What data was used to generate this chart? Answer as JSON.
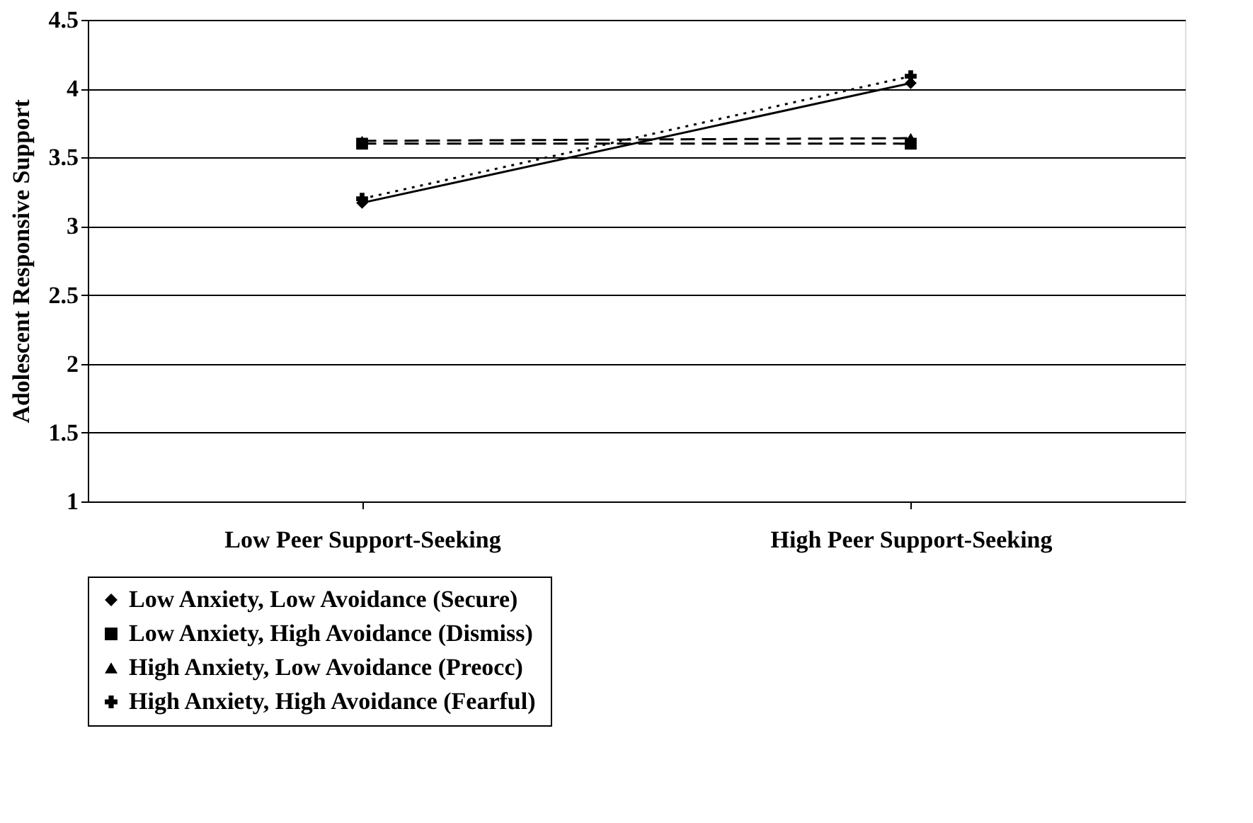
{
  "chart_data": {
    "type": "line",
    "ylabel": "Adolescent Responsive Support",
    "categories": [
      "Low Peer Support-Seeking",
      "High Peer Support-Seeking"
    ],
    "series": [
      {
        "name": "Low Anxiety, Low Avoidance (Secure)",
        "color": "#000000",
        "values": [
          3.17,
          4.04
        ],
        "marker": "diamond",
        "line_style": "solid"
      },
      {
        "name": "Low Anxiety, High Avoidance (Dismiss)",
        "color": "#000000",
        "values": [
          3.6,
          3.6
        ],
        "marker": "square",
        "line_style": "dashed"
      },
      {
        "name": "High Anxiety, Low Avoidance (Preocc)",
        "color": "#000000",
        "values": [
          3.62,
          3.64
        ],
        "marker": "triangle",
        "line_style": "dashed"
      },
      {
        "name": "High Anxiety, High Avoidance (Fearful)",
        "color": "#000000",
        "values": [
          3.2,
          4.09
        ],
        "marker": "cross",
        "line_style": "dotted"
      }
    ],
    "ylim": [
      1,
      4.5
    ],
    "yticks": [
      1,
      1.5,
      2,
      2.5,
      3,
      3.5,
      4,
      4.5
    ],
    "grid": "y",
    "legend": "bottom"
  }
}
